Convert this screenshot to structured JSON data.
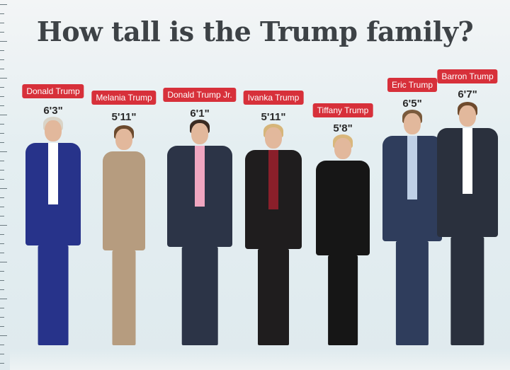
{
  "title": "How tall is the Trump family?",
  "people": [
    {
      "name": "Donald Trump",
      "height": "6'3\"",
      "suit": "#27338a",
      "hair": "#d9d4c8",
      "shirt": "#ffffff"
    },
    {
      "name": "Melania Trump",
      "height": "5'11\"",
      "suit": "#b69c7f",
      "hair": "#6b4a2e",
      "shirt": "#b69c7f"
    },
    {
      "name": "Donald Trump Jr.",
      "height": "6'1\"",
      "suit": "#2c3447",
      "hair": "#3a2b22",
      "shirt": "#f0a6c0"
    },
    {
      "name": "Ivanka Trump",
      "height": "5'11\"",
      "suit": "#1f1d1e",
      "hair": "#d6b57a",
      "shirt": "#8a1f2a"
    },
    {
      "name": "Tiffany Trump",
      "height": "5'8\"",
      "suit": "#161616",
      "hair": "#d9b77c",
      "shirt": "#161616"
    },
    {
      "name": "Eric Trump",
      "height": "6'5\"",
      "suit": "#2f3d5c",
      "hair": "#7a5a3c",
      "shirt": "#bfd0e6"
    },
    {
      "name": "Barron Trump",
      "height": "6'7\"",
      "suit": "#2a303d",
      "hair": "#6e4a2d",
      "shirt": "#ffffff"
    }
  ],
  "colors": {
    "label_bg": "#d7303a",
    "title": "#3d4246",
    "background": "#e2edf0"
  }
}
